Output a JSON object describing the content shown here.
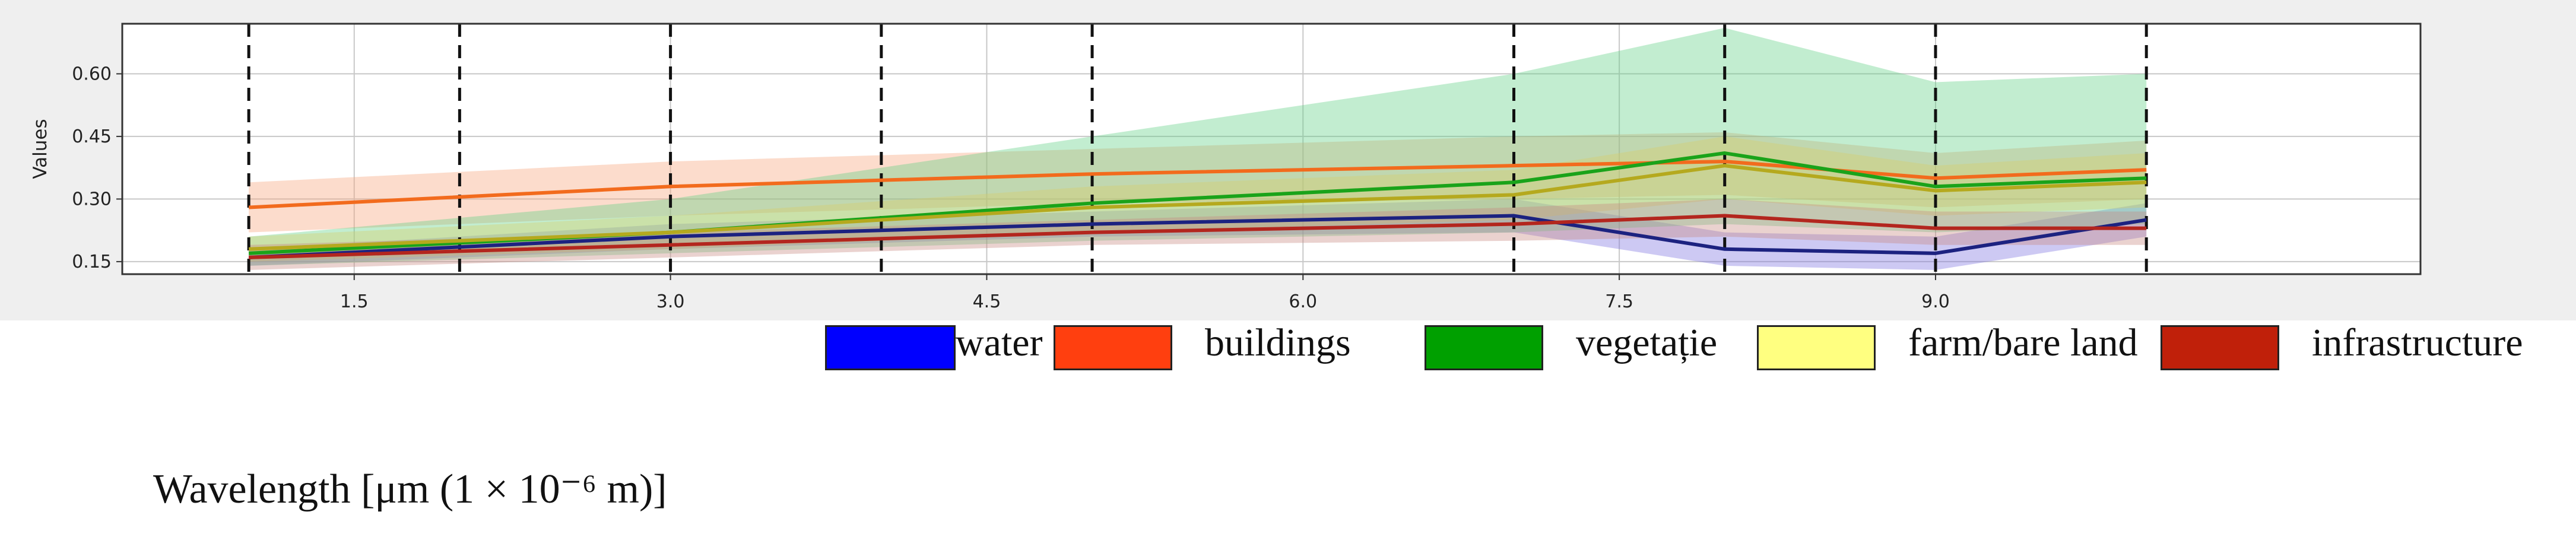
{
  "chart_data": {
    "type": "line",
    "ylabel": "Values",
    "xlabel": "Wavelength [μm (1 × 10⁻⁶ m)]",
    "xlim": [
      0.4,
      11.3
    ],
    "ylim": [
      0.12,
      0.72
    ],
    "xticks": [
      "1.5",
      "3.0",
      "4.5",
      "6.0",
      "7.5",
      "9.0"
    ],
    "xtick_values": [
      1.5,
      3.0,
      4.5,
      6.0,
      7.5,
      9.0
    ],
    "yticks": [
      "0.15",
      "0.30",
      "0.45",
      "0.60"
    ],
    "ytick_values": [
      0.15,
      0.3,
      0.45,
      0.6
    ],
    "vlines": [
      1.0,
      2.0,
      3.0,
      4.0,
      5.0,
      7.0,
      8.0,
      9.0,
      10.0
    ],
    "grid": true,
    "x": [
      1.0,
      3.0,
      5.0,
      7.0,
      8.0,
      9.0,
      10.0
    ],
    "series": [
      {
        "name": "water",
        "color": "#1c2280",
        "band_color": "#7b70e0",
        "values": [
          0.16,
          0.21,
          0.24,
          0.26,
          0.18,
          0.17,
          0.25
        ],
        "lower": [
          0.14,
          0.18,
          0.21,
          0.22,
          0.14,
          0.13,
          0.21
        ],
        "upper": [
          0.18,
          0.24,
          0.27,
          0.3,
          0.22,
          0.21,
          0.29
        ]
      },
      {
        "name": "buildings",
        "color": "#f26b1d",
        "band_color": "#f7a47a",
        "values": [
          0.28,
          0.33,
          0.36,
          0.38,
          0.39,
          0.35,
          0.37
        ],
        "lower": [
          0.22,
          0.26,
          0.29,
          0.3,
          0.31,
          0.28,
          0.3
        ],
        "upper": [
          0.34,
          0.39,
          0.42,
          0.45,
          0.46,
          0.41,
          0.44
        ]
      },
      {
        "name": "vegetație",
        "color": "#1aa31a",
        "band_color": "#5fcf84",
        "values": [
          0.17,
          0.22,
          0.29,
          0.34,
          0.41,
          0.33,
          0.35
        ],
        "lower": [
          0.14,
          0.17,
          0.2,
          0.22,
          0.24,
          0.22,
          0.24
        ],
        "upper": [
          0.21,
          0.3,
          0.45,
          0.6,
          0.71,
          0.58,
          0.6
        ]
      },
      {
        "name": "farm/bare land",
        "color": "#b5a91e",
        "band_color": "#d8cc6a",
        "values": [
          0.18,
          0.22,
          0.28,
          0.31,
          0.38,
          0.32,
          0.34
        ],
        "lower": [
          0.15,
          0.18,
          0.22,
          0.25,
          0.3,
          0.26,
          0.28
        ],
        "upper": [
          0.21,
          0.26,
          0.33,
          0.37,
          0.45,
          0.38,
          0.41
        ]
      },
      {
        "name": "infrastructure",
        "color": "#b3261e",
        "band_color": "#c98a80",
        "values": [
          0.16,
          0.19,
          0.22,
          0.24,
          0.26,
          0.23,
          0.23
        ],
        "lower": [
          0.13,
          0.16,
          0.19,
          0.2,
          0.21,
          0.19,
          0.19
        ],
        "upper": [
          0.19,
          0.22,
          0.25,
          0.28,
          0.3,
          0.27,
          0.27
        ]
      }
    ]
  },
  "legend": [
    {
      "label": "water",
      "swatch_color": "#0000ff"
    },
    {
      "label": "buildings",
      "swatch_color": "#ff3f0f"
    },
    {
      "label": "vegetație",
      "swatch_color": "#00a000"
    },
    {
      "label": "farm/bare land",
      "swatch_color": "#ffff80"
    },
    {
      "label": "infrastructure",
      "swatch_color": "#c0200a"
    }
  ]
}
